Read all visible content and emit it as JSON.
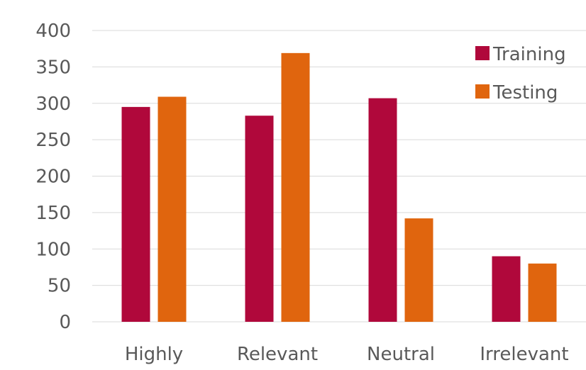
{
  "chart_data": {
    "type": "bar",
    "title": "",
    "xlabel": "",
    "ylabel": "",
    "categories": [
      "Highly",
      "Relevant",
      "Neutral",
      "Irrelevant"
    ],
    "series": [
      {
        "name": "Training",
        "color": "#B0083B",
        "values": [
          295,
          283,
          307,
          90
        ]
      },
      {
        "name": "Testing",
        "color": "#E0650E",
        "values": [
          309,
          369,
          142,
          80
        ]
      }
    ],
    "ylim": [
      0,
      400
    ],
    "yticks": [
      0,
      50,
      100,
      150,
      200,
      250,
      300,
      350,
      400
    ],
    "grid": true,
    "legend_position": "top-right"
  }
}
